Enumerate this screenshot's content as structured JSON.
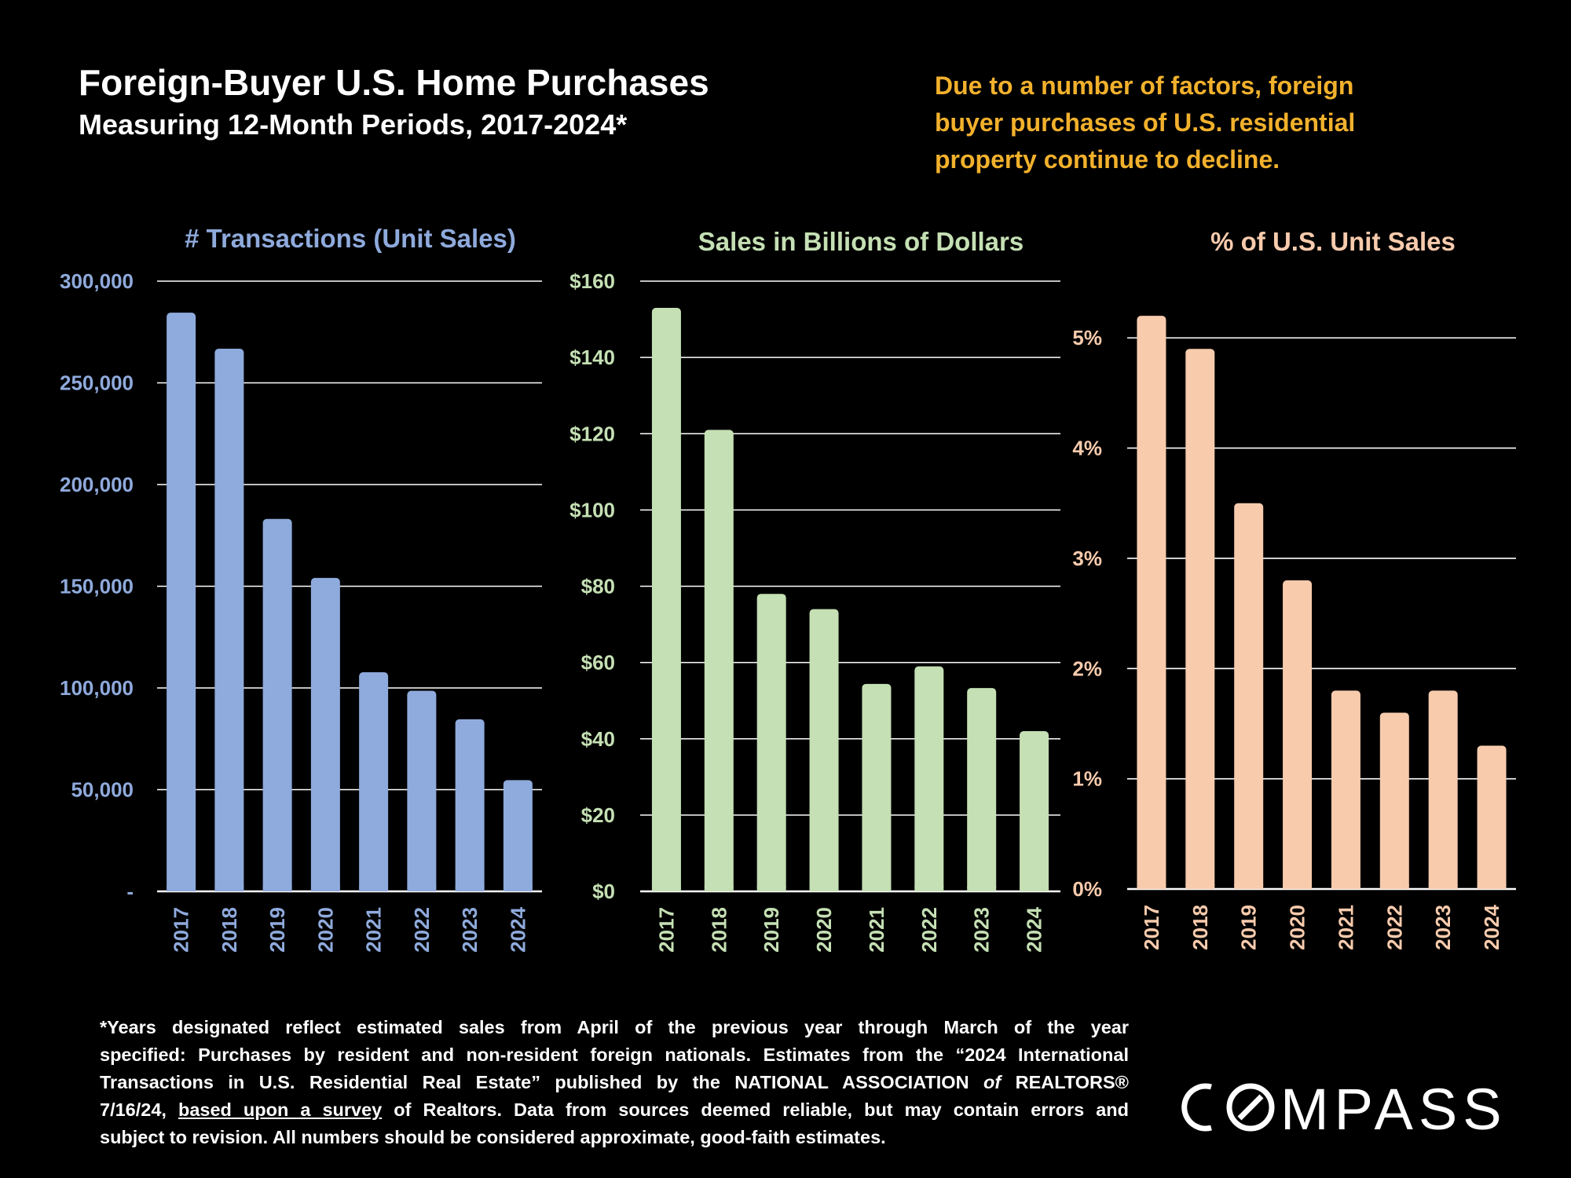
{
  "header": {
    "title": "Foreign-Buyer U.S. Home Purchases",
    "subtitle": "Measuring 12-Month Periods, 2017-2024*"
  },
  "note": {
    "lines": [
      "Due to a number of factors, foreign",
      "buyer purchases of U.S. residential",
      "property continue to decline."
    ],
    "color": "#f2b12c"
  },
  "footnote": {
    "line1": "*Years designated reflect estimated sales from April of the previous year through March of the year",
    "line2": "specified: Purchases by resident and non-resident foreign nationals. Estimates from the “2024 International",
    "line3_a": "Transactions in U.S. Residential Real Estate” published by the NATIONAL ASSOCIATION ",
    "line3_of": "of",
    "line3_b": " REALTORS®",
    "line4_a": "7/16/24, ",
    "line4_link": "based upon a survey",
    "line4_b": " of Realtors. Data from sources deemed reliable, but may contain errors and",
    "line5": "subject to revision.  All numbers should be considered approximate, good-faith estimates."
  },
  "logo": {
    "text": "COMPASS"
  },
  "chart_data": [
    {
      "type": "bar",
      "title": "# Transactions (Unit Sales)",
      "color": "#8faadc",
      "categories": [
        "2017",
        "2018",
        "2019",
        "2020",
        "2021",
        "2022",
        "2023",
        "2024"
      ],
      "values": [
        284500,
        266800,
        183100,
        154100,
        107700,
        98600,
        84600,
        54700
      ],
      "ylim": [
        0,
        300000
      ],
      "yticks": [
        0,
        50000,
        100000,
        150000,
        200000,
        250000,
        300000
      ],
      "ytick_labels": [
        "-",
        "50,000",
        "100,000",
        "150,000",
        "200,000",
        "250,000",
        "300,000"
      ]
    },
    {
      "type": "bar",
      "title": "Sales in Billions of Dollars",
      "color": "#c5e0b4",
      "categories": [
        "2017",
        "2018",
        "2019",
        "2020",
        "2021",
        "2022",
        "2023",
        "2024"
      ],
      "values": [
        153.0,
        121.0,
        78.0,
        74.0,
        54.4,
        59.0,
        53.3,
        42.0
      ],
      "ylim": [
        0,
        160
      ],
      "yticks": [
        0,
        20,
        40,
        60,
        80,
        100,
        120,
        140,
        160
      ],
      "ytick_labels": [
        "$0",
        "$20",
        "$40",
        "$60",
        "$80",
        "$100",
        "$120",
        "$140",
        "$160"
      ]
    },
    {
      "type": "bar",
      "title": "% of U.S. Unit Sales",
      "color": "#f8cbad",
      "categories": [
        "2017",
        "2018",
        "2019",
        "2020",
        "2021",
        "2022",
        "2023",
        "2024"
      ],
      "values": [
        5.2,
        4.9,
        3.5,
        2.8,
        1.8,
        1.6,
        1.8,
        1.3
      ],
      "ylim": [
        0,
        5.7
      ],
      "yticks": [
        0,
        1,
        2,
        3,
        4,
        5
      ],
      "ytick_labels": [
        "0%",
        "1%",
        "2%",
        "3%",
        "4%",
        "5%"
      ]
    }
  ]
}
